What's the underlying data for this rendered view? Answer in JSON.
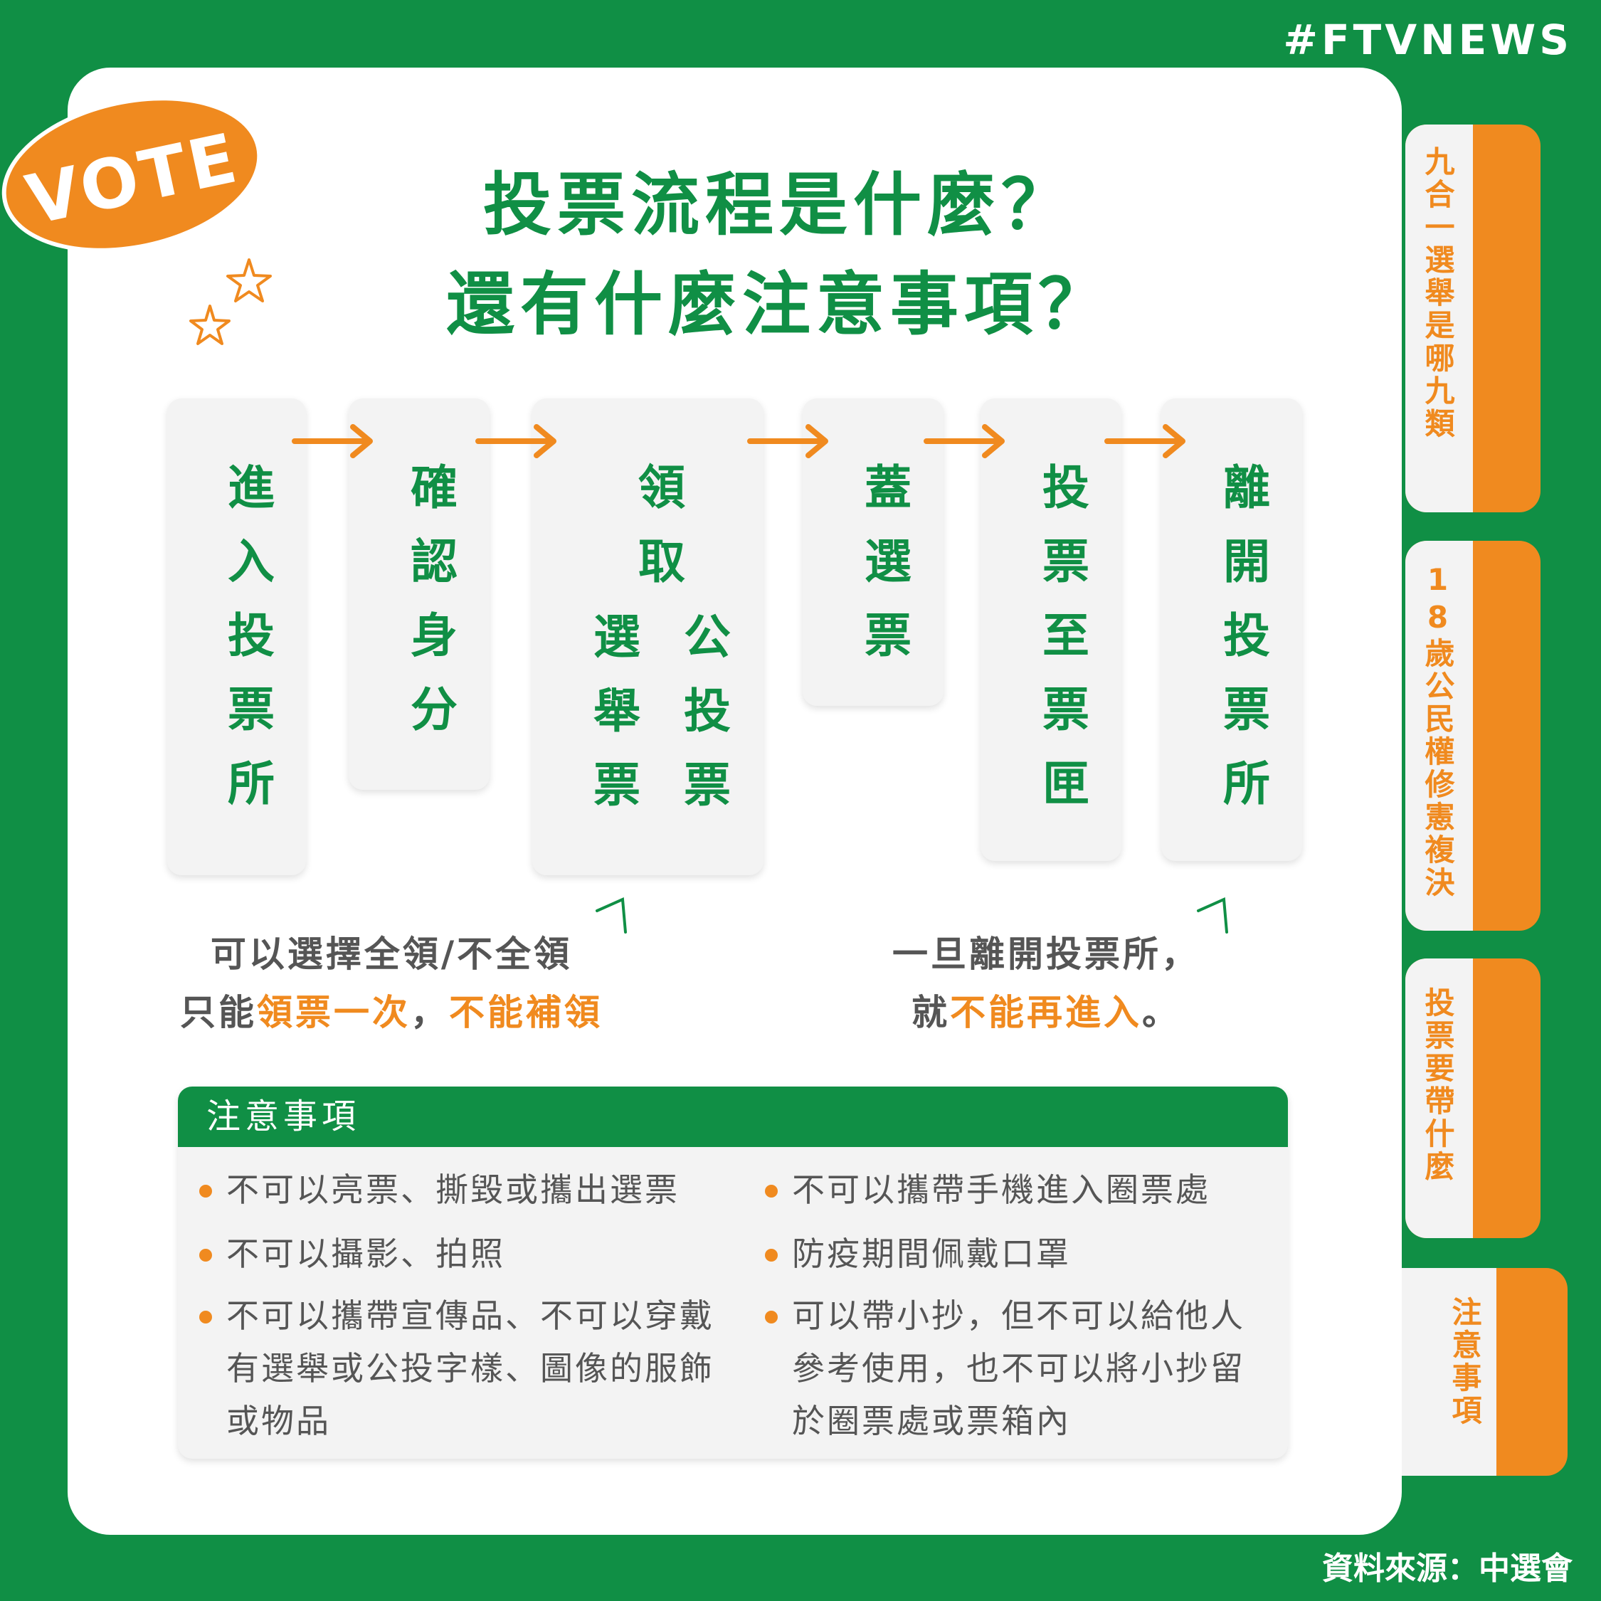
{
  "brand": "#FTVNEWS",
  "source": "資料來源：中選會",
  "badge": "VOTE",
  "title": {
    "line1": "投票流程是什麼？",
    "line2": "還有什麼注意事項？"
  },
  "tabs": [
    "九合一選舉是哪九類",
    "18歲公民權修憲複決",
    "投票要帶什麼",
    "注意事項"
  ],
  "steps": [
    "進入投票所",
    "確認身分",
    "領取",
    "蓋選票",
    "投票至票匣",
    "離開投票所"
  ],
  "step3_columns": [
    "選舉票",
    "公投票"
  ],
  "note_left": {
    "line1": "可以選擇全領/不全領",
    "line2_prefix": "只能",
    "line2_highlight1": "領票一次",
    "line2_sep": "，",
    "line2_highlight2": "不能補領"
  },
  "note_right": {
    "line1": "一旦離開投票所，",
    "line2_prefix": "就",
    "line2_highlight": "不能再進入",
    "line2_suffix": "。"
  },
  "caution": {
    "heading": "注意事項",
    "left_items": [
      "不可以亮票、撕毀或攜出選票",
      "不可以攝影、拍照",
      "不可以攜帶宣傳品、不可以穿戴有選舉或公投字樣、圖像的服飾或物品"
    ],
    "right_items": [
      "不可以攜帶手機進入圈票處",
      "防疫期間佩戴口罩",
      "可以帶小抄，但不可以給他人參考使用，也不可以將小抄留於圈票處或票箱內"
    ]
  },
  "colors": {
    "green": "#108f45",
    "orange": "#f08a1f",
    "panel": "#f3f3f3"
  }
}
